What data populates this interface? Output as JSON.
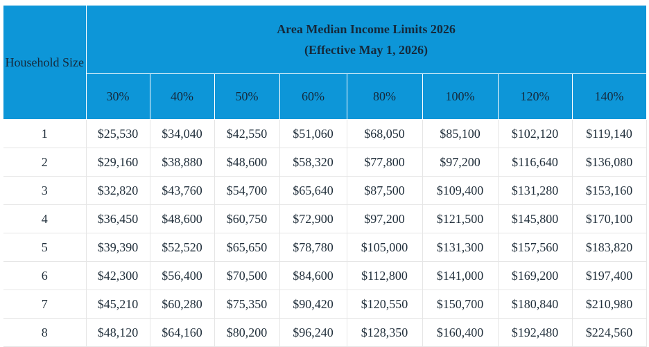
{
  "table": {
    "row_header": "Household Size",
    "title": [
      "Area Median Income Limits 2026",
      "(Effective May 1, 2026)"
    ],
    "columns": [
      "30%",
      "40%",
      "50%",
      "60%",
      "80%",
      "100%",
      "120%",
      "140%"
    ],
    "rows": [
      [
        "1",
        "$25,530",
        "$34,040",
        "$42,550",
        "$51,060",
        "$68,050",
        "$85,100",
        "$102,120",
        "$119,140"
      ],
      [
        "2",
        "$29,160",
        "$38,880",
        "$48,600",
        "$58,320",
        "$77,800",
        "$97,200",
        "$116,640",
        "$136,080"
      ],
      [
        "3",
        "$32,820",
        "$43,760",
        "$54,700",
        "$65,640",
        "$87,500",
        "$109,400",
        "$131,280",
        "$153,160"
      ],
      [
        "4",
        "$36,450",
        "$48,600",
        "$60,750",
        "$72,900",
        "$97,200",
        "$121,500",
        "$145,800",
        "$170,100"
      ],
      [
        "5",
        "$39,390",
        "$52,520",
        "$65,650",
        "$78,780",
        "$105,000",
        "$131,300",
        "$157,560",
        "$183,820"
      ],
      [
        "6",
        "$42,300",
        "$56,400",
        "$70,500",
        "$84,600",
        "$112,800",
        "$141,000",
        "$169,200",
        "$197,400"
      ],
      [
        "7",
        "$45,210",
        "$60,280",
        "$75,350",
        "$90,420",
        "$120,550",
        "$150,700",
        "$180,840",
        "$210,980"
      ],
      [
        "8",
        "$48,120",
        "$64,160",
        "$80,200",
        "$96,240",
        "$128,350",
        "$160,400",
        "$192,480",
        "$224,560"
      ]
    ]
  }
}
